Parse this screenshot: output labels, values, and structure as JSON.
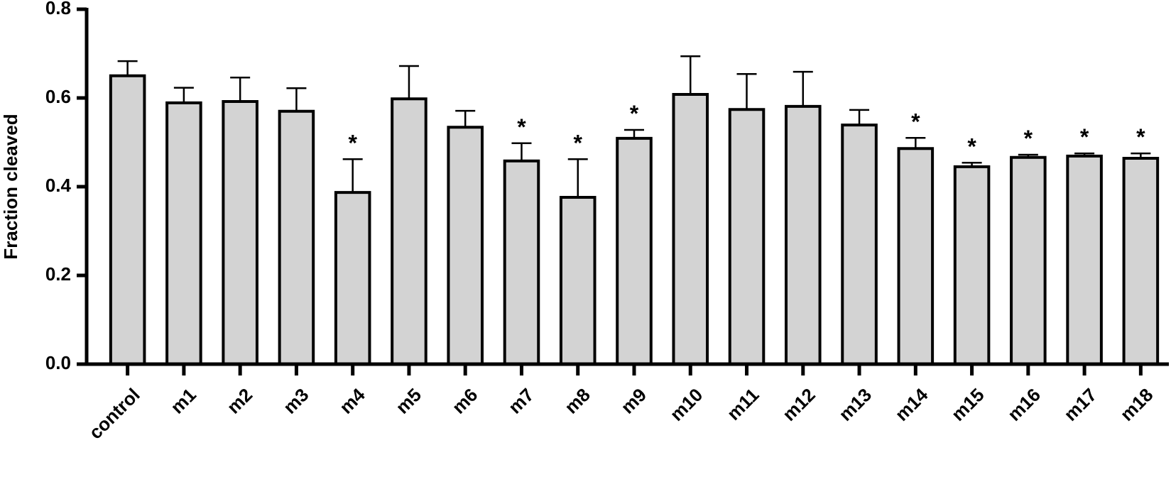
{
  "chart_data": {
    "type": "bar",
    "y_label": "Fraction cleaved",
    "categories": [
      "control",
      "m1",
      "m2",
      "m3",
      "m4",
      "m5",
      "m6",
      "m7",
      "m8",
      "m9",
      "m10",
      "m11",
      "m12",
      "m13",
      "m14",
      "m15",
      "m16",
      "m17",
      "m18"
    ],
    "values": [
      0.65,
      0.589,
      0.592,
      0.57,
      0.387,
      0.598,
      0.534,
      0.458,
      0.376,
      0.509,
      0.608,
      0.574,
      0.581,
      0.539,
      0.486,
      0.445,
      0.466,
      0.469,
      0.464
    ],
    "errors": [
      0.033,
      0.034,
      0.054,
      0.052,
      0.075,
      0.074,
      0.037,
      0.04,
      0.086,
      0.019,
      0.086,
      0.08,
      0.078,
      0.034,
      0.024,
      0.009,
      0.006,
      0.006,
      0.011
    ],
    "annotations": [
      null,
      null,
      null,
      null,
      "*",
      null,
      null,
      "*",
      "*",
      "*",
      null,
      null,
      null,
      null,
      "*",
      "*",
      "*",
      "*",
      "*"
    ],
    "color": "#d3d3d3",
    "ylim": [
      0,
      0.8
    ],
    "yticks": [
      {
        "value": 0,
        "label": "0.0"
      },
      0.2,
      0.4,
      0.6,
      0.8
    ],
    "grid": false
  }
}
